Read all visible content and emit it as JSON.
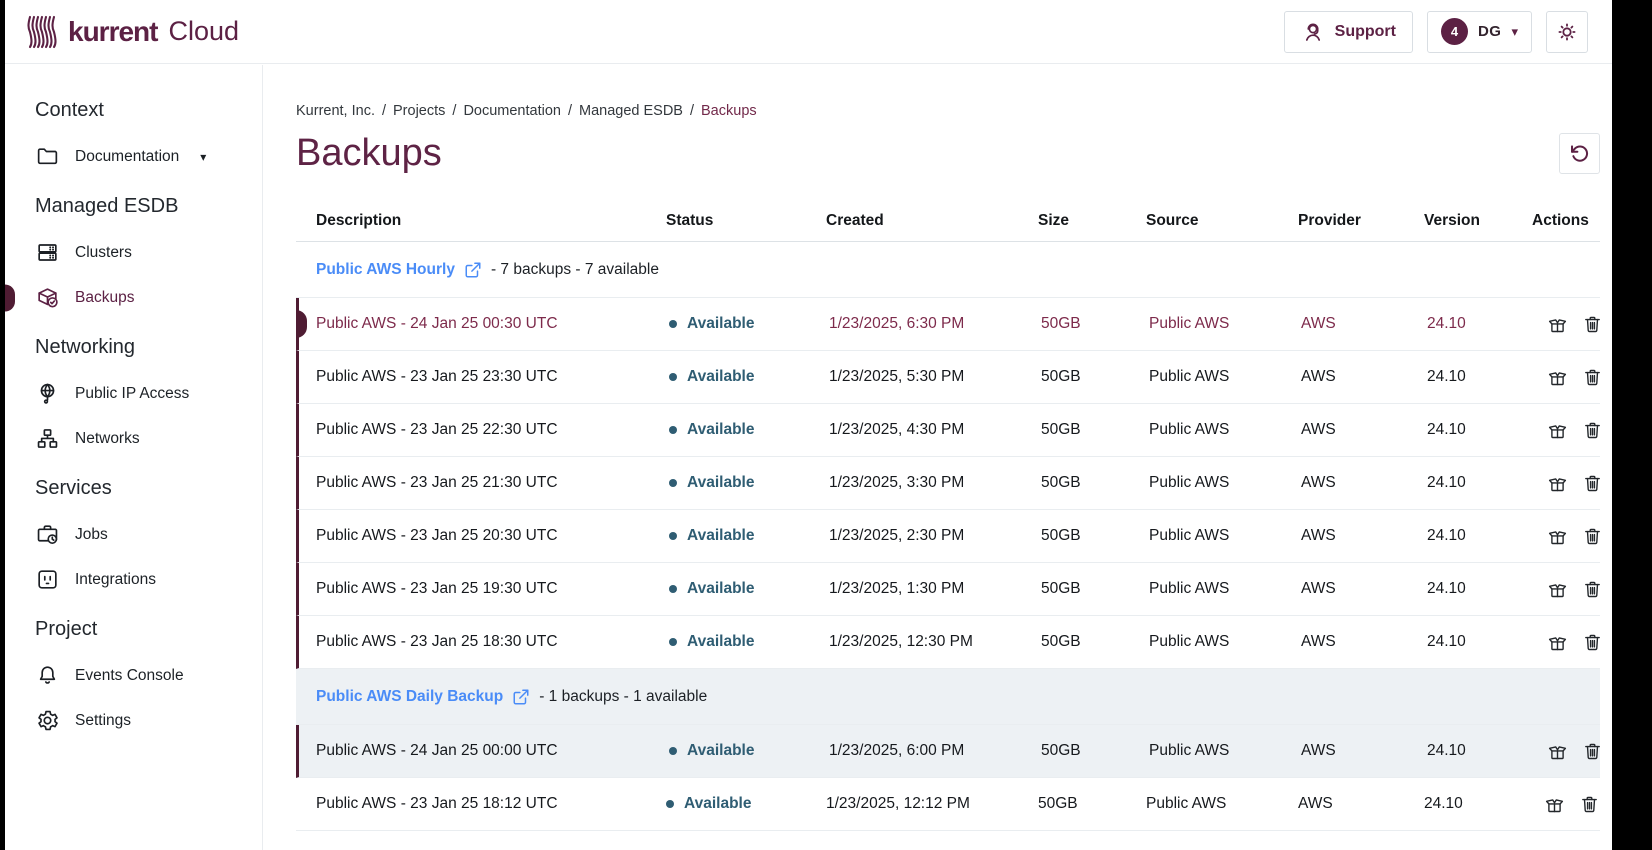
{
  "header": {
    "brand": {
      "name": "kurrent",
      "suffix": "Cloud"
    },
    "support_label": "Support",
    "account": {
      "badge_count": "4",
      "initials": "DG"
    }
  },
  "sidebar": {
    "sections": [
      {
        "title": "Context",
        "items": [
          {
            "label": "Documentation",
            "icon": "folder",
            "has_caret": true
          }
        ]
      },
      {
        "title": "Managed ESDB",
        "items": [
          {
            "label": "Clusters",
            "icon": "clusters"
          },
          {
            "label": "Backups",
            "icon": "backups",
            "active": true
          }
        ]
      },
      {
        "title": "Networking",
        "items": [
          {
            "label": "Public IP Access",
            "icon": "globe"
          },
          {
            "label": "Networks",
            "icon": "network"
          }
        ]
      },
      {
        "title": "Services",
        "items": [
          {
            "label": "Jobs",
            "icon": "jobs"
          },
          {
            "label": "Integrations",
            "icon": "integrations"
          }
        ]
      },
      {
        "title": "Project",
        "items": [
          {
            "label": "Events Console",
            "icon": "bell"
          },
          {
            "label": "Settings",
            "icon": "gear"
          }
        ]
      }
    ]
  },
  "breadcrumb": {
    "items": [
      "Kurrent, Inc.",
      "Projects",
      "Documentation",
      "Managed ESDB"
    ],
    "current": "Backups",
    "separator": "/"
  },
  "page": {
    "title": "Backups"
  },
  "table": {
    "columns": [
      "Description",
      "Status",
      "Created",
      "Size",
      "Source",
      "Provider",
      "Version",
      "Actions"
    ],
    "row_actions": [
      {
        "name": "restore-backup",
        "icon": "box"
      },
      {
        "name": "delete-backup",
        "icon": "trash"
      }
    ],
    "groups": [
      {
        "name": "Public AWS Hourly",
        "summary": "- 7 backups - 7 available",
        "highlighted": false,
        "rows": [
          {
            "description": "Public AWS - 24 Jan 25 00:30 UTC",
            "status": "Available",
            "created": "1/23/2025, 6:30 PM",
            "size": "50GB",
            "source": "Public AWS",
            "provider": "AWS",
            "version": "24.10",
            "selected": true
          },
          {
            "description": "Public AWS - 23 Jan 25 23:30 UTC",
            "status": "Available",
            "created": "1/23/2025, 5:30 PM",
            "size": "50GB",
            "source": "Public AWS",
            "provider": "AWS",
            "version": "24.10"
          },
          {
            "description": "Public AWS - 23 Jan 25 22:30 UTC",
            "status": "Available",
            "created": "1/23/2025, 4:30 PM",
            "size": "50GB",
            "source": "Public AWS",
            "provider": "AWS",
            "version": "24.10"
          },
          {
            "description": "Public AWS - 23 Jan 25 21:30 UTC",
            "status": "Available",
            "created": "1/23/2025, 3:30 PM",
            "size": "50GB",
            "source": "Public AWS",
            "provider": "AWS",
            "version": "24.10"
          },
          {
            "description": "Public AWS - 23 Jan 25 20:30 UTC",
            "status": "Available",
            "created": "1/23/2025, 2:30 PM",
            "size": "50GB",
            "source": "Public AWS",
            "provider": "AWS",
            "version": "24.10"
          },
          {
            "description": "Public AWS - 23 Jan 25 19:30 UTC",
            "status": "Available",
            "created": "1/23/2025, 1:30 PM",
            "size": "50GB",
            "source": "Public AWS",
            "provider": "AWS",
            "version": "24.10"
          },
          {
            "description": "Public AWS - 23 Jan 25 18:30 UTC",
            "status": "Available",
            "created": "1/23/2025, 12:30 PM",
            "size": "50GB",
            "source": "Public AWS",
            "provider": "AWS",
            "version": "24.10"
          }
        ]
      },
      {
        "name": "Public AWS Daily Backup",
        "summary": "- 1 backups - 1 available",
        "highlighted": true,
        "rows": [
          {
            "description": "Public AWS - 24 Jan 25 00:00 UTC",
            "status": "Available",
            "created": "1/23/2025, 6:00 PM",
            "size": "50GB",
            "source": "Public AWS",
            "provider": "AWS",
            "version": "24.10"
          }
        ]
      }
    ],
    "standalone_rows": [
      {
        "description": "Public AWS - 23 Jan 25 18:12 UTC",
        "status": "Available",
        "created": "1/23/2025, 12:12 PM",
        "size": "50GB",
        "source": "Public AWS",
        "provider": "AWS",
        "version": "24.10"
      }
    ]
  },
  "colors": {
    "brand": "#5c2144",
    "selected_row_text": "#7d2a4b",
    "active_indicator": "#4f1c33",
    "group_link": "#4a8cf7",
    "status_available": "#2f5d73",
    "group_highlight_bg": "#edf1f4"
  }
}
